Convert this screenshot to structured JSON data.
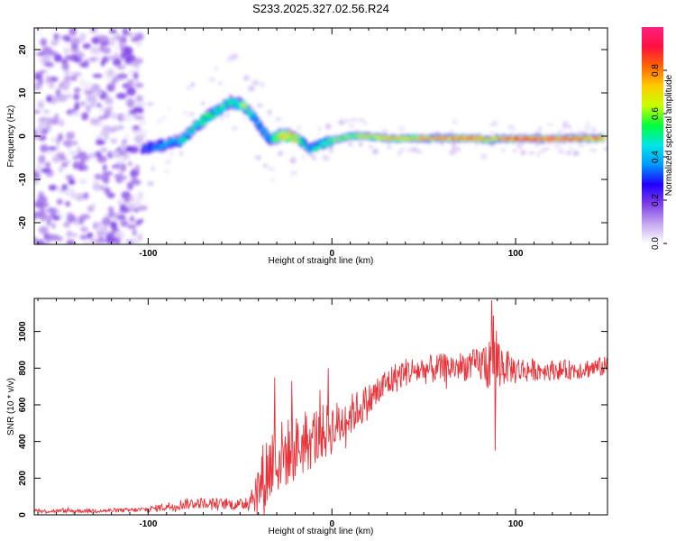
{
  "title": "S233.2025.327.02.56.R24",
  "chart_data": [
    {
      "type": "heatmap",
      "title": "S233.2025.327.02.56.R24",
      "xlabel": "Height of straight line (km)",
      "ylabel": "Frequency (Hz)",
      "xlim": [
        -162,
        150
      ],
      "ylim": [
        -25,
        25
      ],
      "xticks": [
        -100,
        0,
        100
      ],
      "yticks": [
        -20,
        -10,
        0,
        10,
        20
      ],
      "colorbar": {
        "label": "Normalized spectral amplitude",
        "range": [
          0,
          1
        ],
        "ticks": [
          "0.0",
          "0.2",
          "0.4",
          "0.6",
          "0.8"
        ],
        "tick_values": [
          0.0,
          0.2,
          0.4,
          0.6,
          0.8
        ],
        "stops": [
          "#ffffff",
          "#c4a7f0",
          "#7f3fe6",
          "#2200ff",
          "#0098ff",
          "#00e6e6",
          "#00ff3c",
          "#c8ff00",
          "#ffcc00",
          "#ff6600",
          "#ff1040",
          "#ff2080"
        ]
      },
      "noise_region_x": [
        -162,
        -103
      ],
      "ridge": {
        "x": [
          -103,
          -92,
          -82,
          -72,
          -62,
          -55,
          -48,
          -42,
          -37,
          -34,
          -29,
          -23,
          -17,
          -12,
          -7,
          0,
          10,
          20,
          30,
          40,
          60,
          80,
          85,
          90,
          95,
          120,
          148
        ],
        "freq": [
          -3,
          -2,
          -1,
          3,
          6,
          8,
          7,
          4,
          1,
          -1,
          0,
          0,
          -1,
          -3,
          -2,
          -1,
          0,
          0,
          -0.5,
          -0.5,
          -0.5,
          -0.5,
          -1,
          -0.5,
          -0.6,
          -0.6,
          -0.5
        ],
        "amp": [
          0.3,
          0.4,
          0.45,
          0.5,
          0.55,
          0.5,
          0.6,
          0.45,
          0.4,
          0.4,
          0.7,
          0.8,
          0.55,
          0.4,
          0.5,
          0.6,
          0.65,
          0.7,
          0.75,
          0.75,
          0.8,
          0.85,
          0.7,
          0.8,
          0.92,
          0.95,
          0.85
        ]
      }
    },
    {
      "type": "line",
      "xlabel": "Height of straight line (km)",
      "ylabel": "SNR (10 * v/v)",
      "xlim": [
        -162,
        150
      ],
      "ylim": [
        0,
        1180
      ],
      "xticks": [
        -100,
        0,
        100
      ],
      "yticks": [
        0,
        200,
        400,
        600,
        800,
        1000
      ],
      "color": "#e8333a",
      "envelope": {
        "x": [
          -162,
          -130,
          -110,
          -100,
          -90,
          -80,
          -70,
          -60,
          -50,
          -45,
          -40,
          -37,
          -33,
          -28,
          -20,
          -10,
          -2,
          5,
          12,
          20,
          30,
          40,
          50,
          60,
          70,
          80,
          85,
          88,
          91,
          95,
          100,
          110,
          120,
          130,
          140,
          150
        ],
        "mean": [
          20,
          22,
          25,
          30,
          45,
          60,
          65,
          60,
          55,
          80,
          150,
          200,
          280,
          320,
          360,
          420,
          460,
          500,
          560,
          620,
          720,
          780,
          790,
          800,
          810,
          820,
          830,
          860,
          820,
          810,
          790,
          790,
          790,
          790,
          800,
          810
        ],
        "amp": [
          10,
          12,
          12,
          15,
          25,
          30,
          30,
          30,
          30,
          60,
          140,
          220,
          230,
          200,
          180,
          170,
          150,
          130,
          110,
          100,
          90,
          80,
          80,
          80,
          80,
          90,
          160,
          300,
          160,
          90,
          80,
          60,
          55,
          55,
          55,
          55
        ]
      },
      "peaks": [
        {
          "x": 87,
          "y": 1170
        },
        {
          "x": 89,
          "y": 1160
        },
        {
          "x": -31,
          "y": 750
        },
        {
          "x": -22,
          "y": 730
        },
        {
          "x": -2,
          "y": 800
        },
        {
          "x": 89,
          "y": 350
        }
      ]
    }
  ]
}
